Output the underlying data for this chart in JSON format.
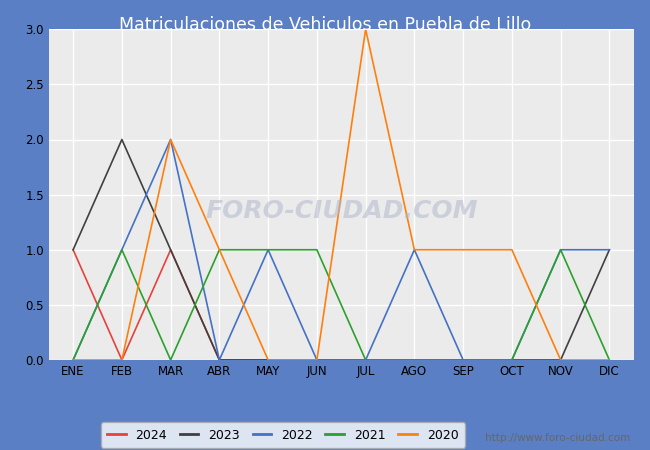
{
  "title": "Matriculaciones de Vehiculos en Puebla de Lillo",
  "title_color": "#2020a0",
  "months": [
    "ENE",
    "FEB",
    "MAR",
    "ABR",
    "MAY",
    "JUN",
    "JUL",
    "AGO",
    "SEP",
    "OCT",
    "NOV",
    "DIC"
  ],
  "series": {
    "2024": {
      "color": "#e8413a",
      "values": [
        1,
        0,
        1,
        0,
        0,
        null,
        null,
        null,
        null,
        null,
        null,
        null
      ]
    },
    "2023": {
      "color": "#404040",
      "values": [
        1,
        2,
        1,
        0,
        0,
        0,
        0,
        0,
        0,
        0,
        0,
        1
      ]
    },
    "2022": {
      "color": "#4472c4",
      "values": [
        0,
        1,
        2,
        0,
        1,
        0,
        0,
        1,
        0,
        0,
        1,
        1
      ]
    },
    "2021": {
      "color": "#2ca02c",
      "values": [
        0,
        1,
        0,
        1,
        1,
        1,
        0,
        0,
        0,
        0,
        1,
        0
      ]
    },
    "2020": {
      "color": "#ff7f0e",
      "values": [
        0,
        0,
        2,
        1,
        0,
        0,
        3,
        1,
        1,
        1,
        0,
        0
      ]
    }
  },
  "ylim": [
    0,
    3.0
  ],
  "yticks": [
    0.0,
    0.5,
    1.0,
    1.5,
    2.0,
    2.5,
    3.0
  ],
  "fig_bg_color": "#5b7fc4",
  "plot_bg_color": "#ebebeb",
  "title_area_color": "#5b7fc4",
  "grid_color": "#ffffff",
  "watermark": "http://www.foro-ciudad.com",
  "watermark_plot": "FORO-CIUDAD.COM"
}
